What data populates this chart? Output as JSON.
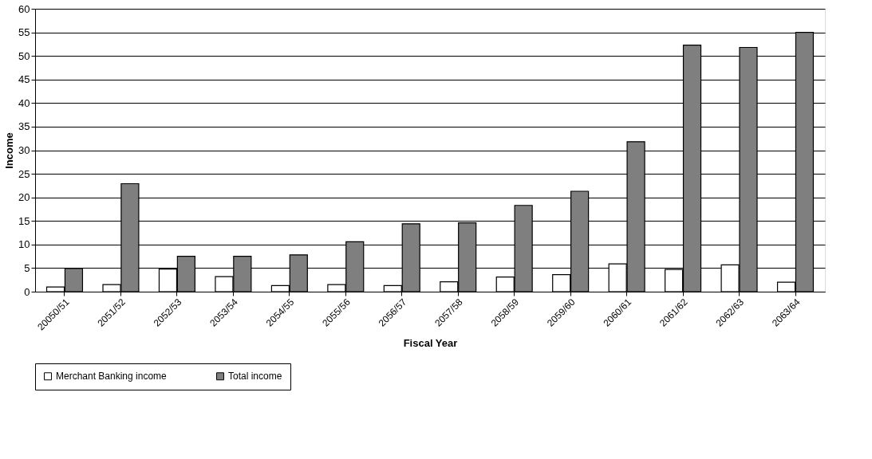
{
  "chart_data": {
    "type": "bar",
    "xlabel": "Fiscal Year",
    "ylabel": "Income",
    "categories": [
      "20050/51",
      "2051/52",
      "2052/53",
      "2053/54",
      "2054/55",
      "2055/56",
      "2056/57",
      "2057/58",
      "2058/59",
      "2059/60",
      "2060/61",
      "2061/62",
      "2062/63",
      "2063/64"
    ],
    "series": [
      {
        "name": "Merchant Banking income",
        "color": "#ffffff",
        "values": [
          1.0,
          1.5,
          4.8,
          3.2,
          1.3,
          1.5,
          1.3,
          2.1,
          3.1,
          3.6,
          5.9,
          4.7,
          5.7,
          2.0
        ]
      },
      {
        "name": "Total income",
        "color": "#7f7f7f",
        "values": [
          4.9,
          22.9,
          7.5,
          7.5,
          7.8,
          10.6,
          14.4,
          14.6,
          18.3,
          21.3,
          31.8,
          52.3,
          51.8,
          55.0
        ]
      }
    ],
    "ylim": [
      0,
      60
    ],
    "yticks": [
      0,
      5,
      10,
      15,
      20,
      25,
      30,
      35,
      40,
      45,
      50,
      55,
      60
    ],
    "grid": "y",
    "legend": "bottom"
  }
}
